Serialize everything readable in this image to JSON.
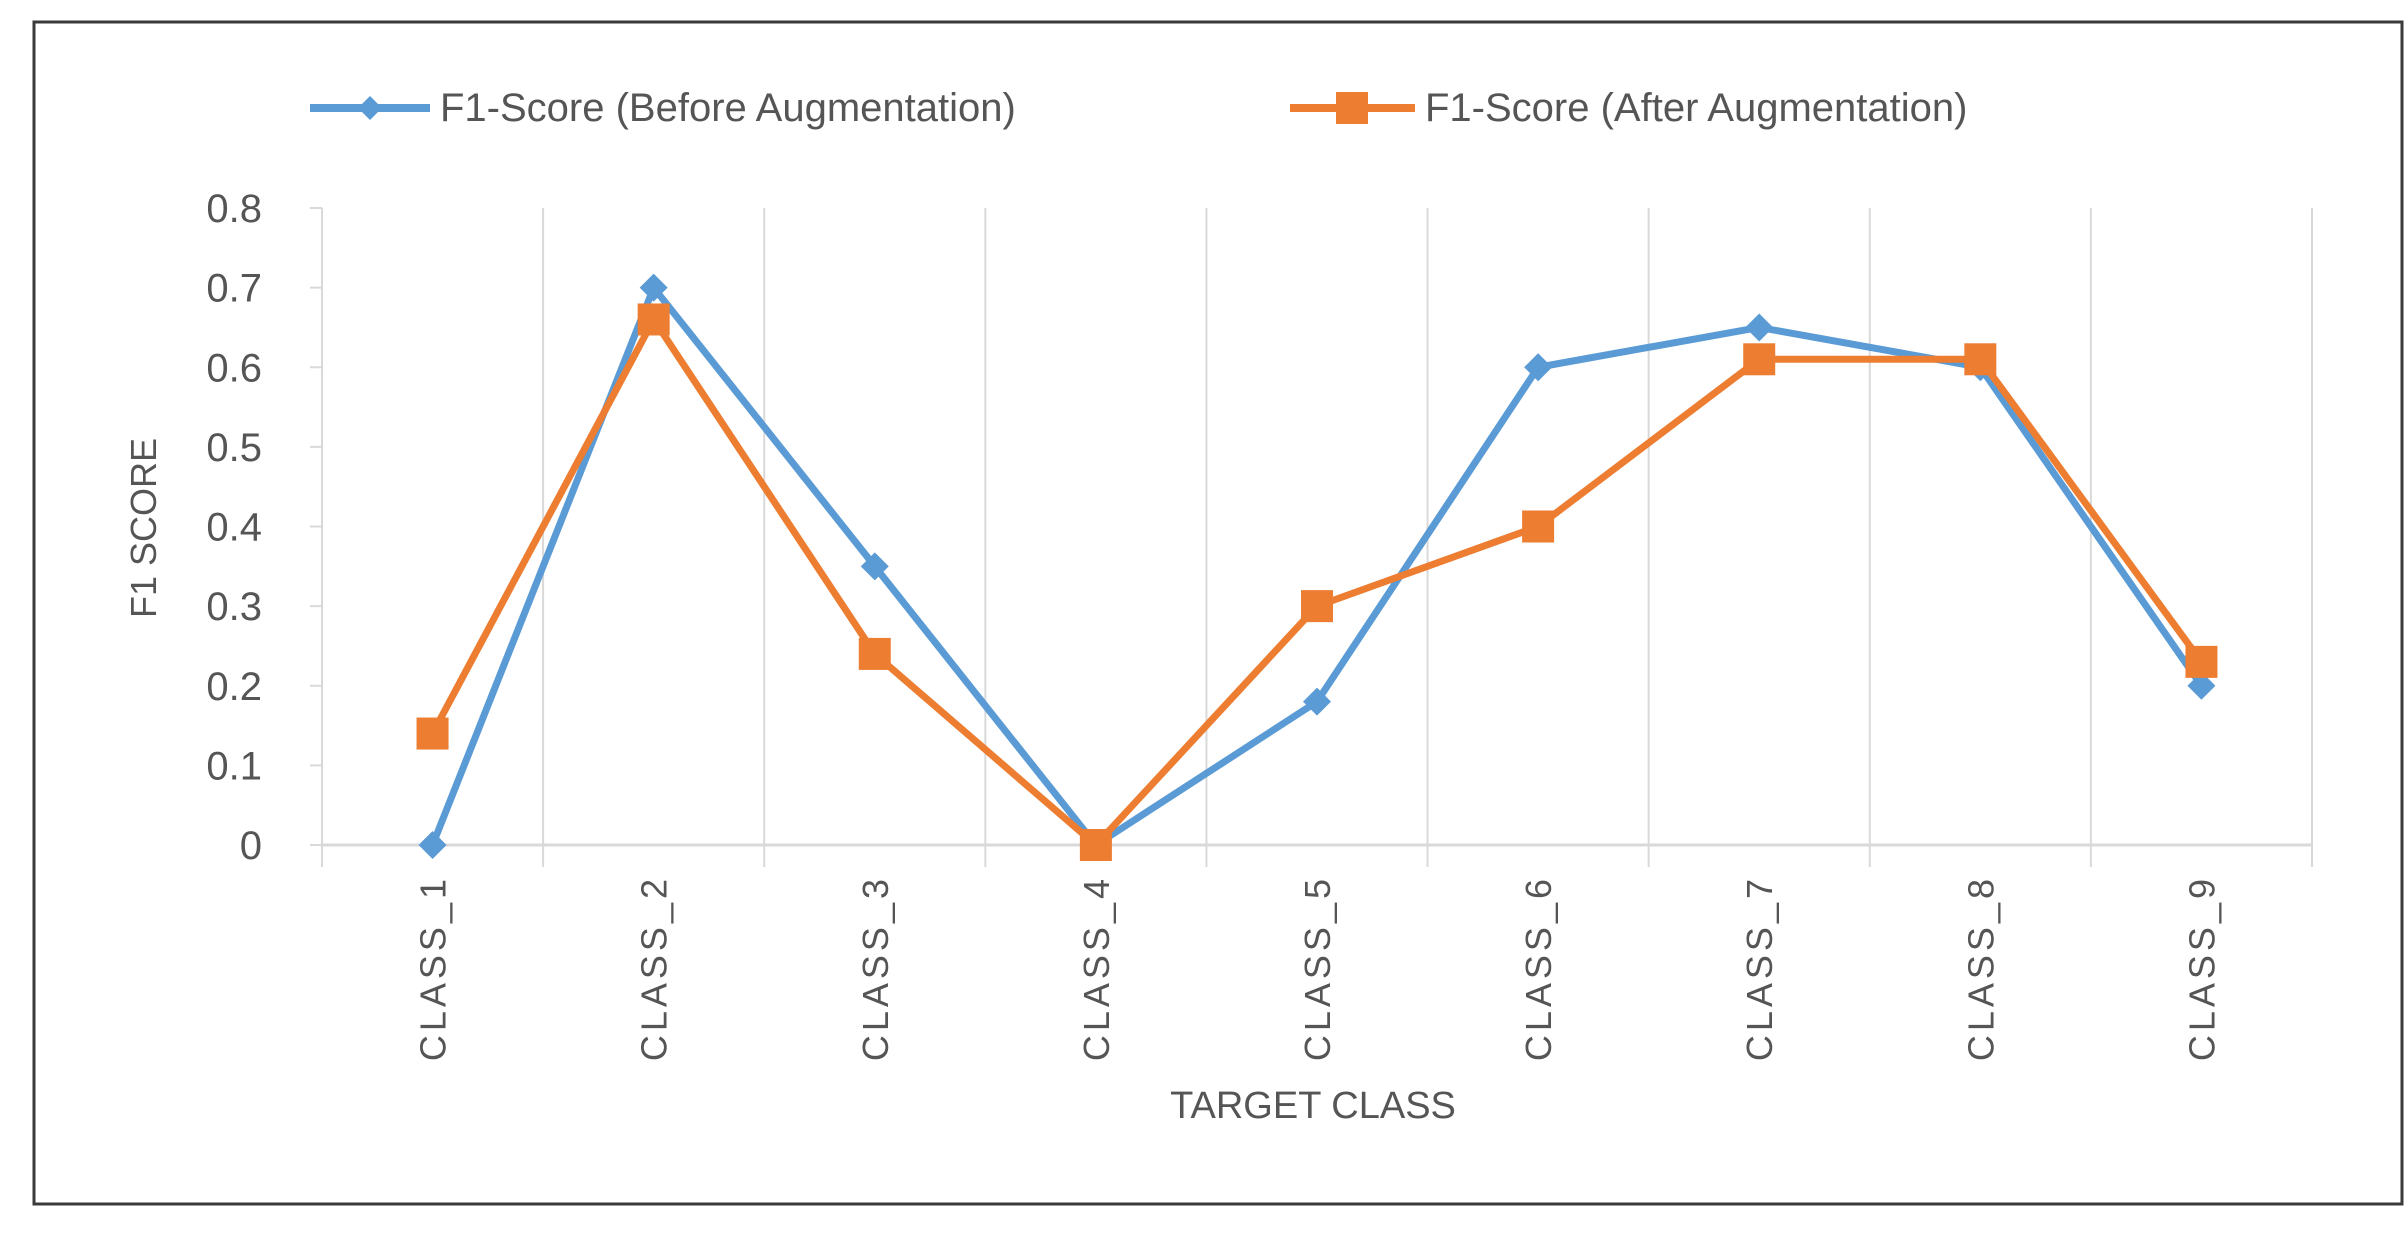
{
  "chart_data": {
    "type": "line",
    "title": "",
    "xlabel": "TARGET CLASS",
    "ylabel": "F1 SCORE",
    "categories": [
      "CLASS_1",
      "CLASS_2",
      "CLASS_3",
      "CLASS_4",
      "CLASS_5",
      "CLASS_6",
      "CLASS_7",
      "CLASS_8",
      "CLASS_9"
    ],
    "ylim": [
      0,
      0.8
    ],
    "yticks": [
      "0",
      "0.1",
      "0.2",
      "0.3",
      "0.4",
      "0.5",
      "0.6",
      "0.7",
      "0.8"
    ],
    "grid": "vertical",
    "legend_position": "top",
    "series": [
      {
        "name": "F1-Score (Before Augmentation)",
        "values": [
          0.0,
          0.7,
          0.35,
          0.0,
          0.18,
          0.6,
          0.65,
          0.6,
          0.2
        ],
        "color": "#5b9bd5",
        "marker": "diamond"
      },
      {
        "name": "F1-Score (After Augmentation)",
        "values": [
          0.14,
          0.66,
          0.24,
          0.0,
          0.3,
          0.4,
          0.61,
          0.61,
          0.23
        ],
        "color": "#ed7d31",
        "marker": "square"
      }
    ]
  }
}
